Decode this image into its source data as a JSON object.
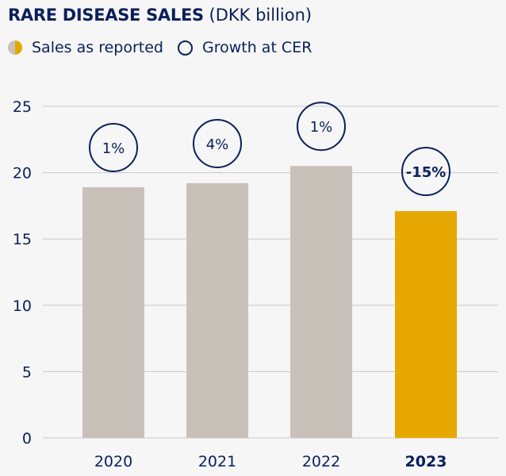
{
  "chart_data": {
    "type": "bar",
    "title": "RARE DISEASE SALES",
    "unit": "(DKK billion)",
    "legend": [
      {
        "label": "Sales as reported",
        "icon": "half-filled-circle"
      },
      {
        "label": "Growth at CER",
        "icon": "open-circle"
      }
    ],
    "categories": [
      "2020",
      "2021",
      "2022",
      "2023"
    ],
    "values": [
      18.9,
      19.2,
      20.5,
      17.1
    ],
    "growth_labels": [
      "1%",
      "4%",
      "1%",
      "-15%"
    ],
    "highlight_index": 3,
    "yticks": [
      "0",
      "5",
      "10",
      "15",
      "20",
      "25"
    ],
    "ylim": [
      0,
      25
    ],
    "colors": {
      "bar": "#c8c1ba",
      "highlight": "#e6a800",
      "text": "#0b1f5c",
      "grid": "#c9c9c9"
    },
    "grid": true
  }
}
